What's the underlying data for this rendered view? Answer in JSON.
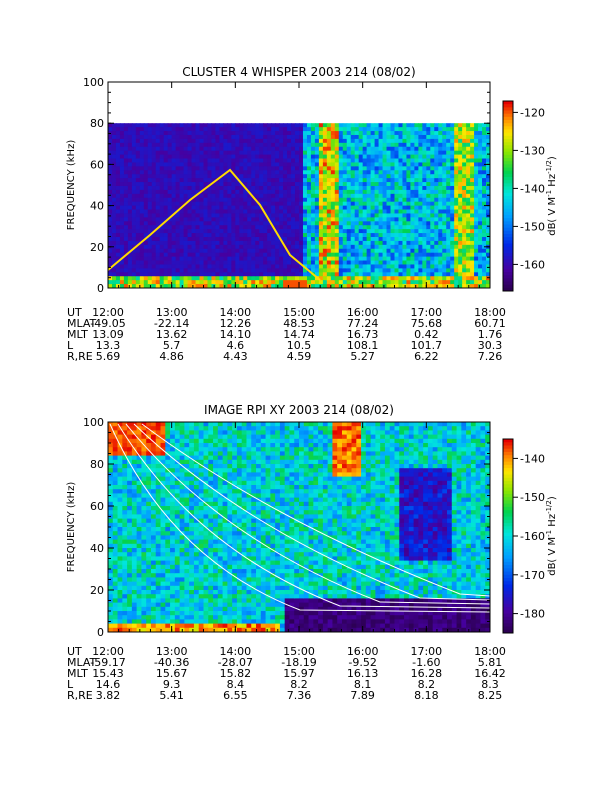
{
  "chart_data": [
    {
      "type": "heatmap",
      "title": "CLUSTER 4 WHISPER 2003 214 (08/02)",
      "ylabel": "FREQUENCY (kHz)",
      "ylim": [
        0,
        100
      ],
      "yticks": [
        "0",
        "20",
        "40",
        "60",
        "80",
        "100"
      ],
      "x_range": [
        "12:00",
        "18:00"
      ],
      "data_extent_khz": [
        0,
        80
      ],
      "colorbar": {
        "label_parts": [
          "dB( V M",
          "-1",
          " Hz",
          "-1/2",
          ")"
        ],
        "range": [
          -167,
          -117
        ],
        "ticks": [
          "-120",
          "-130",
          "-140",
          "-150",
          "-160"
        ],
        "tick_values": [
          -120,
          -130,
          -140,
          -150,
          -160
        ]
      },
      "ephemeris": {
        "labels": [
          "UT",
          "MLAT",
          "MLT",
          "L",
          "R,RE"
        ],
        "rows": [
          [
            "12:00",
            "13:00",
            "14:00",
            "15:00",
            "16:00",
            "17:00",
            "18:00"
          ],
          [
            "-49.05",
            "-22.14",
            "12.26",
            "48.53",
            "77.24",
            "75.68",
            "60.71"
          ],
          [
            "13.09",
            "13.62",
            "14.10",
            "14.74",
            "16.73",
            "0.42",
            "1.76"
          ],
          [
            "13.3",
            "5.7",
            "4.6",
            "10.5",
            "108.1",
            "101.7",
            "30.3"
          ],
          [
            "5.69",
            "4.86",
            "4.43",
            "4.59",
            "5.27",
            "6.22",
            "7.26"
          ]
        ]
      }
    },
    {
      "type": "heatmap",
      "title": "IMAGE RPI XY 2003 214 (08/02)",
      "ylabel": "FREQUENCY (kHz)",
      "ylim": [
        0,
        100
      ],
      "yticks": [
        "0",
        "20",
        "40",
        "60",
        "80",
        "100"
      ],
      "x_range": [
        "12:00",
        "18:00"
      ],
      "data_extent_khz": [
        0,
        100
      ],
      "colorbar": {
        "label_parts": [
          "dB( V M",
          "-1",
          " Hz",
          "-1/2",
          ")"
        ],
        "range": [
          -185,
          -135
        ],
        "ticks": [
          "-140",
          "-150",
          "-160",
          "-170",
          "-180"
        ],
        "tick_values": [
          -140,
          -150,
          -160,
          -170,
          -180
        ]
      },
      "ephemeris": {
        "labels": [
          "UT",
          "MLAT",
          "MLT",
          "L",
          "R,RE"
        ],
        "rows": [
          [
            "12:00",
            "13:00",
            "14:00",
            "15:00",
            "16:00",
            "17:00",
            "18:00"
          ],
          [
            "-59.17",
            "-40.36",
            "-28.07",
            "-18.19",
            "-9.52",
            "-1.60",
            "5.81"
          ],
          [
            "15.43",
            "15.67",
            "15.82",
            "15.97",
            "16.13",
            "16.28",
            "16.42"
          ],
          [
            "14.6",
            "9.3",
            "8.4",
            "8.2",
            "8.1",
            "8.2",
            "8.3"
          ],
          [
            "3.82",
            "5.41",
            "6.55",
            "7.36",
            "7.89",
            "8.18",
            "8.25"
          ]
        ]
      }
    }
  ]
}
